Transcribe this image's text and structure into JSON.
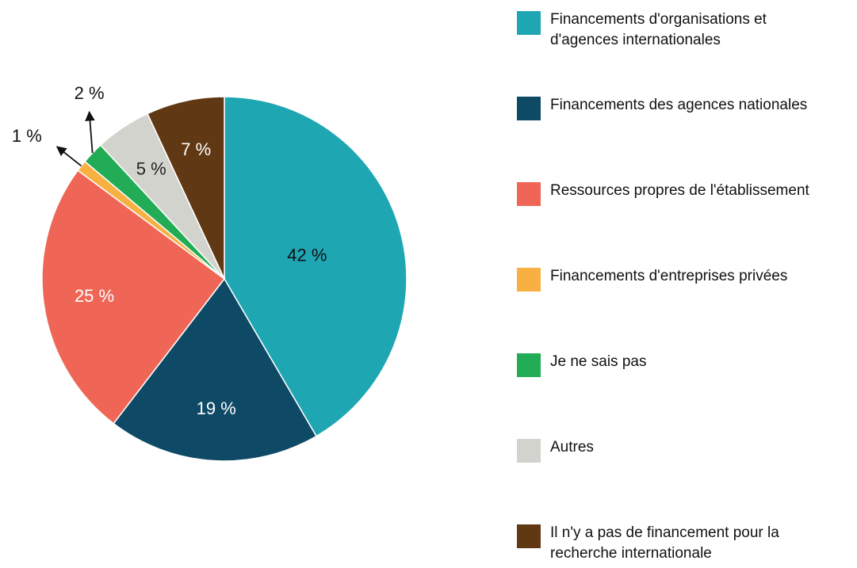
{
  "chart_data": {
    "type": "pie",
    "categories": [
      "Financements d'organisations et d'agences internationales",
      "Financements des agences nationales",
      "Ressources propres de l'établissement",
      "Financements d'entreprises privées",
      "Je ne sais pas",
      "Autres",
      "Il n'y a pas de financement pour la recherche internationale"
    ],
    "values": [
      42,
      19,
      25,
      1,
      2,
      5,
      7
    ],
    "value_labels": [
      "42 %",
      "19 %",
      "25 %",
      "1 %",
      "2 %",
      "5 %",
      "7 %"
    ],
    "colors": [
      "#1fa6b3",
      "#0e4a66",
      "#ef6657",
      "#f7b041",
      "#22ac55",
      "#d3d3ce",
      "#603813"
    ],
    "label_colors": [
      "#111111",
      "#ffffff",
      "#ffffff",
      "#111111",
      "#111111",
      "#222222",
      "#ffffff"
    ],
    "legend": "right"
  }
}
